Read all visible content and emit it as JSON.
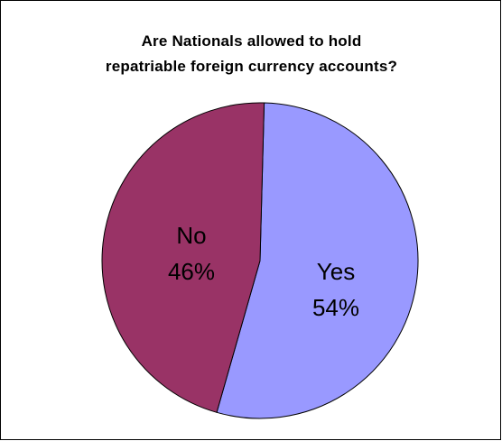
{
  "chart_data": {
    "type": "pie",
    "title_lines": [
      "Are Nationals allowed to hold",
      "repatriable foreign currency accounts?"
    ],
    "slices": [
      {
        "label": "Yes",
        "percent_label": "54%",
        "value": 54,
        "color": "#9999ff"
      },
      {
        "label": "No",
        "percent_label": "46%",
        "value": 46,
        "color": "#993366"
      }
    ],
    "legend": "none"
  }
}
